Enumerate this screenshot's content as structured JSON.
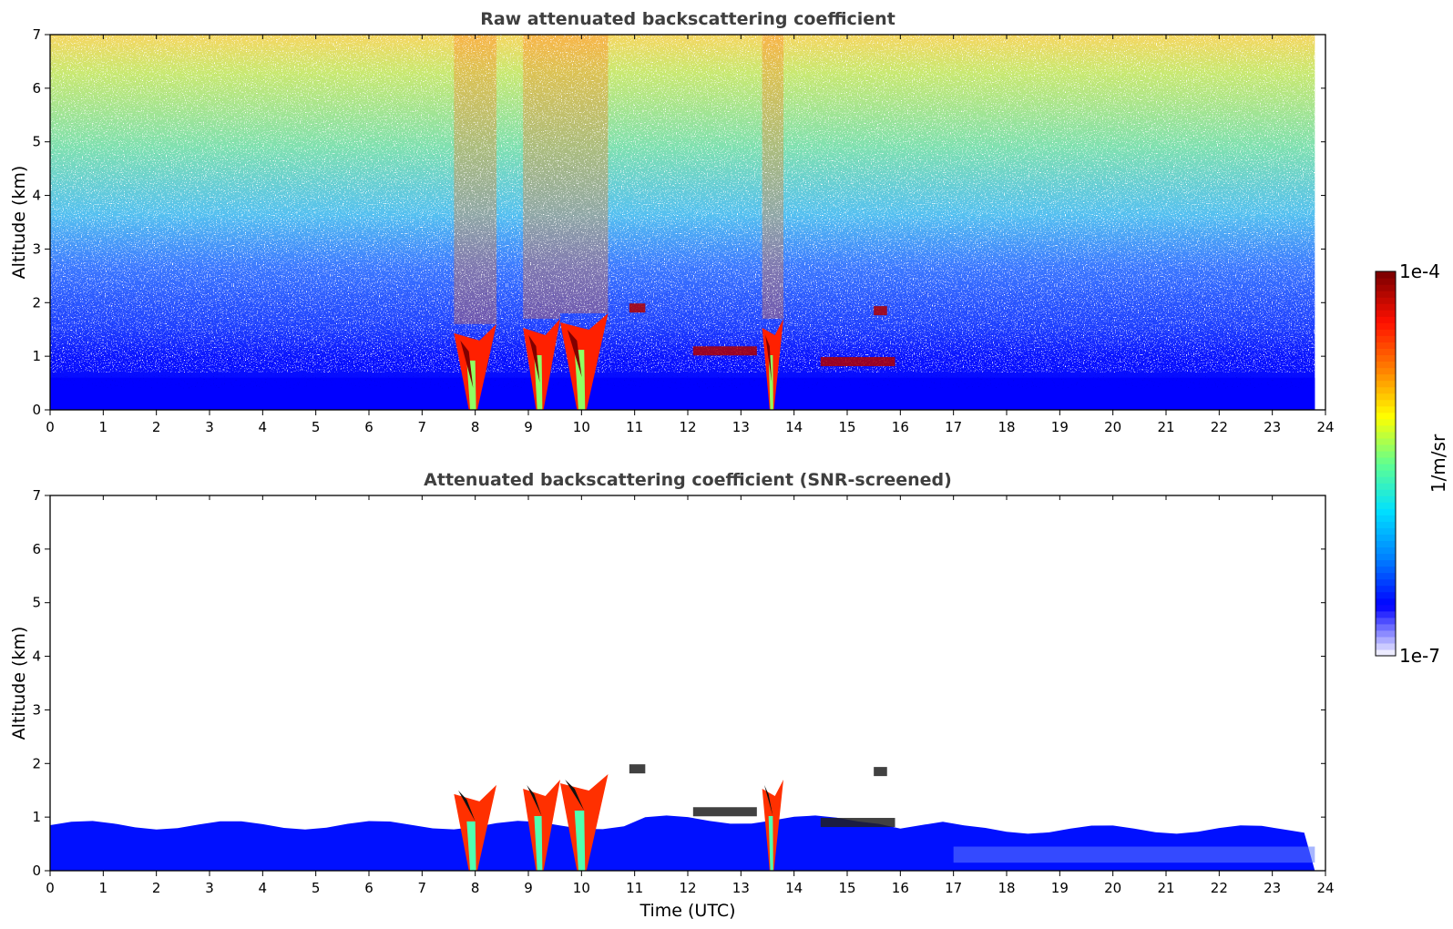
{
  "chart_data": [
    {
      "type": "heatmap",
      "title": "Raw attenuated backscattering coefficient",
      "xlabel": "",
      "ylabel": "Altitude (km)",
      "xlim": [
        0,
        24
      ],
      "ylim": [
        0,
        7
      ],
      "xticks": [
        "0",
        "1",
        "2",
        "3",
        "4",
        "5",
        "6",
        "7",
        "8",
        "9",
        "10",
        "11",
        "12",
        "13",
        "14",
        "15",
        "16",
        "17",
        "18",
        "19",
        "20",
        "21",
        "22",
        "23",
        "24"
      ],
      "yticks": [
        "0",
        "1",
        "2",
        "3",
        "4",
        "5",
        "6",
        "7"
      ],
      "data_end_hour": 23.8,
      "boundary_layer_top_km": 0.6,
      "cloud_plumes": [
        {
          "x_start": 7.6,
          "x_end": 8.4,
          "top_km": 1.6
        },
        {
          "x_start": 8.9,
          "x_end": 9.6,
          "top_km": 1.7
        },
        {
          "x_start": 9.6,
          "x_end": 10.5,
          "top_km": 1.8
        },
        {
          "x_start": 13.4,
          "x_end": 13.8,
          "top_km": 1.7
        }
      ],
      "elevated_layers": [
        {
          "x_start": 10.9,
          "x_end": 11.2,
          "alt_km": 1.9
        },
        {
          "x_start": 12.1,
          "x_end": 13.3,
          "alt_km": 1.1
        },
        {
          "x_start": 14.5,
          "x_end": 15.9,
          "alt_km": 0.9
        },
        {
          "x_start": 15.5,
          "x_end": 15.75,
          "alt_km": 1.85
        }
      ]
    },
    {
      "type": "heatmap",
      "title": "Attenuated backscattering coefficient (SNR-screened)",
      "xlabel": "Time (UTC)",
      "ylabel": "Altitude (km)",
      "xlim": [
        0,
        24
      ],
      "ylim": [
        0,
        7
      ],
      "xticks": [
        "0",
        "1",
        "2",
        "3",
        "4",
        "5",
        "6",
        "7",
        "8",
        "9",
        "10",
        "11",
        "12",
        "13",
        "14",
        "15",
        "16",
        "17",
        "18",
        "19",
        "20",
        "21",
        "22",
        "23",
        "24"
      ],
      "yticks": [
        "0",
        "1",
        "2",
        "3",
        "4",
        "5",
        "6",
        "7"
      ],
      "data_end_hour": 23.8,
      "boundary_layer_top_km": 0.85
    }
  ],
  "colorbar": {
    "label": "1/m/sr",
    "max_label": "1e-4",
    "min_label": "1e-7",
    "scale": "log",
    "colors": [
      "#ecebff",
      "#0000ff",
      "#0080ff",
      "#00e0ff",
      "#60ff90",
      "#ffff00",
      "#ff8000",
      "#ff1000",
      "#800000"
    ]
  }
}
